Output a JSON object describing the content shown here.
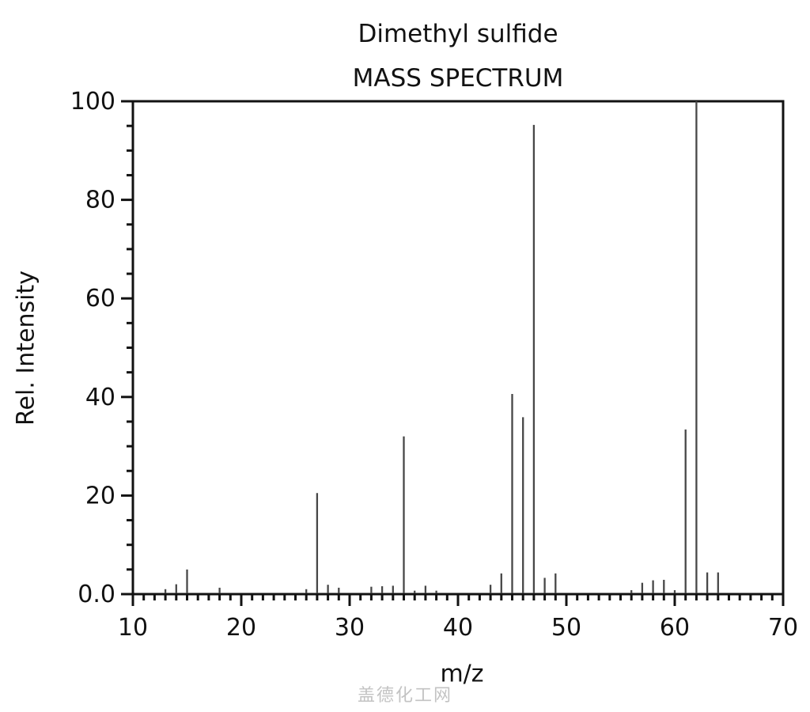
{
  "header": {
    "title": "Dimethyl sulfide",
    "subtitle": "MASS SPECTRUM"
  },
  "watermark": {
    "text": "盖德化工网",
    "color": "#c3c3c3"
  },
  "colors": {
    "axis": "#121212",
    "peak": "#474747",
    "text": "#121212"
  },
  "chart_data": {
    "type": "bar",
    "title": "Dimethyl sulfide",
    "subtitle": "MASS SPECTRUM",
    "xlabel": "m/z",
    "ylabel": "Rel. Intensity",
    "xlim": [
      10,
      70
    ],
    "ylim": [
      0,
      100
    ],
    "grid": false,
    "legend_position": "none",
    "x_major_ticks": [
      10,
      20,
      30,
      40,
      50,
      60,
      70
    ],
    "x_major_tick_labels": [
      "10",
      "20",
      "30",
      "40",
      "50",
      "60",
      "70"
    ],
    "x_minor_step": 1,
    "y_major_ticks": [
      0,
      20,
      40,
      60,
      80,
      100
    ],
    "y_major_tick_labels": [
      "0.0",
      "20",
      "40",
      "60",
      "80",
      "100"
    ],
    "y_minor_step": 5,
    "series": [
      {
        "name": "relative intensity",
        "points": [
          {
            "mz": 13,
            "intensity": 1.0
          },
          {
            "mz": 14,
            "intensity": 2.0
          },
          {
            "mz": 15,
            "intensity": 5.0
          },
          {
            "mz": 18,
            "intensity": 1.3
          },
          {
            "mz": 26,
            "intensity": 1.0
          },
          {
            "mz": 27,
            "intensity": 20.5
          },
          {
            "mz": 28,
            "intensity": 1.9
          },
          {
            "mz": 29,
            "intensity": 1.3
          },
          {
            "mz": 32,
            "intensity": 1.5
          },
          {
            "mz": 33,
            "intensity": 1.6
          },
          {
            "mz": 34,
            "intensity": 1.7
          },
          {
            "mz": 35,
            "intensity": 32.0
          },
          {
            "mz": 36,
            "intensity": 0.7
          },
          {
            "mz": 37,
            "intensity": 1.7
          },
          {
            "mz": 38,
            "intensity": 0.7
          },
          {
            "mz": 43,
            "intensity": 1.9
          },
          {
            "mz": 44,
            "intensity": 4.2
          },
          {
            "mz": 45,
            "intensity": 40.6
          },
          {
            "mz": 46,
            "intensity": 35.9
          },
          {
            "mz": 47,
            "intensity": 95.2
          },
          {
            "mz": 48,
            "intensity": 3.3
          },
          {
            "mz": 49,
            "intensity": 4.2
          },
          {
            "mz": 56,
            "intensity": 0.8
          },
          {
            "mz": 57,
            "intensity": 2.3
          },
          {
            "mz": 58,
            "intensity": 2.8
          },
          {
            "mz": 59,
            "intensity": 2.9
          },
          {
            "mz": 60,
            "intensity": 0.8
          },
          {
            "mz": 61,
            "intensity": 33.4
          },
          {
            "mz": 62,
            "intensity": 100.0
          },
          {
            "mz": 63,
            "intensity": 4.4
          },
          {
            "mz": 64,
            "intensity": 4.4
          }
        ]
      }
    ]
  }
}
